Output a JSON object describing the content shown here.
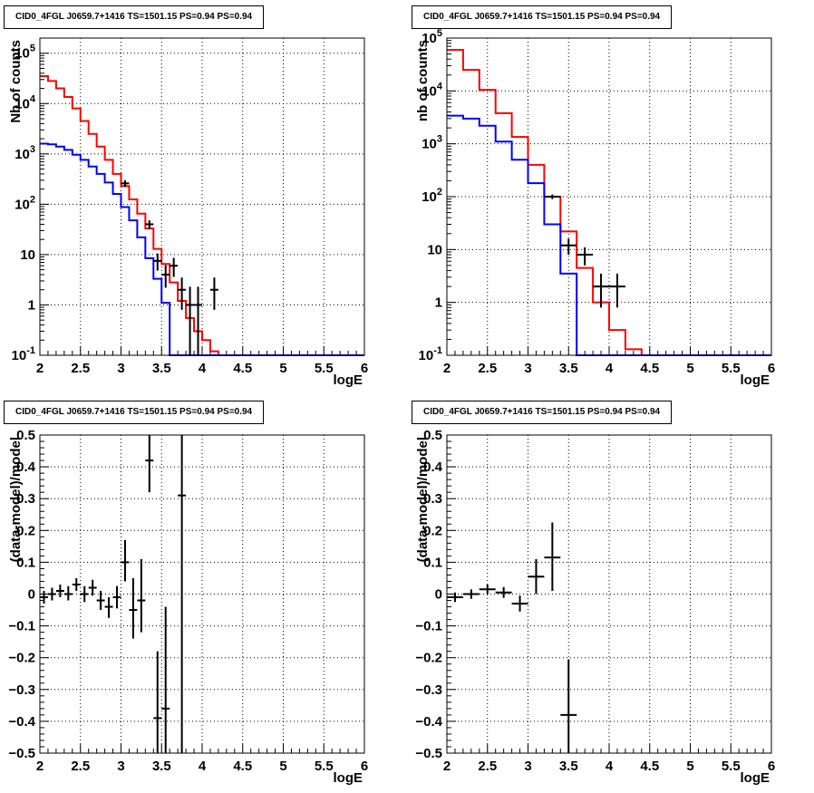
{
  "chart_data": [
    {
      "type": "line",
      "panel": "top-left",
      "title": "CID0_4FGL J0659.7+1416 TS=1501.15 PS=0.94 PS=0.94",
      "xlabel": "logE",
      "ylabel": "Nb of counts",
      "xlim": [
        2,
        6
      ],
      "ylim": [
        0.1,
        200000
      ],
      "yscale": "log",
      "grid": true,
      "x_ticks": [
        "2",
        "2.5",
        "3",
        "3.5",
        "4",
        "4.5",
        "5",
        "5.5",
        "6"
      ],
      "y_ticks": [
        "10^-1",
        "1",
        "10",
        "10^2",
        "10^3",
        "10^4",
        "10^5"
      ],
      "series": [
        {
          "color": "#ff0000",
          "style": "step",
          "x": [
            2.0,
            2.1,
            2.2,
            2.3,
            2.4,
            2.5,
            2.6,
            2.7,
            2.8,
            2.9,
            3.0,
            3.1,
            3.2,
            3.3,
            3.4,
            3.5,
            3.6,
            3.7,
            3.8,
            3.9,
            4.0,
            4.1,
            4.2,
            4.3,
            4.4,
            4.5,
            4.6,
            4.7,
            4.8,
            4.9,
            5.0,
            5.1,
            5.2,
            5.3,
            5.4,
            5.5,
            5.6,
            5.7,
            5.8,
            5.9
          ],
          "values": [
            35000,
            28000,
            20000,
            13500,
            8000,
            4500,
            2500,
            1400,
            760,
            400,
            230,
            125,
            65,
            33,
            13,
            6.5,
            2.8,
            1.2,
            0.55,
            0.3,
            0.2,
            0.12,
            0.1,
            0.1,
            0.1,
            0.1,
            0.1,
            0.1,
            0.1,
            0.1,
            0.1,
            0.1,
            0.1,
            0.1,
            0.1,
            0.1,
            0.1,
            0.1,
            0.1,
            0.1
          ]
        },
        {
          "color": "#0000ff",
          "style": "step",
          "x": [
            2.0,
            2.1,
            2.2,
            2.3,
            2.4,
            2.5,
            2.6,
            2.7,
            2.8,
            2.9,
            3.0,
            3.1,
            3.2,
            3.3,
            3.4,
            3.5,
            3.6,
            3.7,
            3.8,
            3.9,
            4.0,
            4.1,
            4.2,
            4.3,
            4.4,
            4.5,
            4.6,
            4.7,
            4.8,
            4.9,
            5.0,
            5.1,
            5.2,
            5.3,
            5.4,
            5.5,
            5.6,
            5.7,
            5.8,
            5.9
          ],
          "values": [
            1600,
            1550,
            1400,
            1200,
            960,
            760,
            560,
            400,
            270,
            160,
            88,
            48,
            22,
            8.5,
            3.3,
            1.1,
            0.1,
            0.1,
            0.1,
            0.1,
            0.1,
            0.1,
            0.1,
            0.1,
            0.1,
            0.1,
            0.1,
            0.1,
            0.1,
            0.1,
            0.1,
            0.1,
            0.1,
            0.1,
            0.1,
            0.1,
            0.1,
            0.1,
            0.1,
            0.1
          ]
        },
        {
          "color": "#000000",
          "style": "errorbar",
          "x": [
            3.05,
            3.35,
            3.45,
            3.55,
            3.65,
            3.75,
            3.85,
            3.95,
            4.15
          ],
          "values": [
            260,
            40,
            7.5,
            4,
            6,
            2,
            1,
            1,
            2
          ],
          "xerr": 0.05,
          "err_low": [
            220,
            32,
            4.8,
            2.2,
            3.6,
            0.8,
            0.1,
            0.1,
            0.8
          ],
          "err_high": [
            300,
            48,
            10.5,
            6.2,
            8.6,
            3.5,
            2.3,
            2.3,
            3.5
          ]
        }
      ]
    },
    {
      "type": "line",
      "panel": "top-right",
      "title": "CID0_4FGL J0659.7+1416 TS=1501.15 PS=0.94 PS=0.94",
      "xlabel": "logE",
      "ylabel": "nb of counts",
      "xlim": [
        2,
        6
      ],
      "ylim": [
        0.1,
        100000
      ],
      "yscale": "log",
      "grid": true,
      "x_ticks": [
        "2",
        "2.5",
        "3",
        "3.5",
        "4",
        "4.5",
        "5",
        "5.5",
        "6"
      ],
      "y_ticks": [
        "10^-1",
        "1",
        "10",
        "10^2",
        "10^3",
        "10^4",
        "10^5"
      ],
      "series": [
        {
          "color": "#ff0000",
          "style": "step",
          "x": [
            2.0,
            2.2,
            2.4,
            2.6,
            2.8,
            3.0,
            3.2,
            3.4,
            3.6,
            3.8,
            4.0,
            4.2,
            4.4,
            4.6,
            4.8,
            5.0,
            5.2,
            5.4,
            5.6,
            5.8
          ],
          "values": [
            60000,
            25000,
            10500,
            3800,
            1350,
            400,
            100,
            22,
            4.5,
            1,
            0.3,
            0.13,
            0.1,
            0.1,
            0.1,
            0.1,
            0.1,
            0.1,
            0.1,
            0.1
          ],
          "xerr": 0.1
        },
        {
          "color": "#0000ff",
          "style": "step",
          "x": [
            2.0,
            2.2,
            2.4,
            2.6,
            2.8,
            3.0,
            3.2,
            3.4,
            3.6,
            3.8,
            4.0,
            4.2,
            4.4,
            4.6,
            4.8,
            5.0,
            5.2,
            5.4,
            5.6,
            5.8
          ],
          "values": [
            3400,
            3000,
            2200,
            1100,
            500,
            180,
            30,
            3.5,
            0.1,
            0.1,
            0.1,
            0.1,
            0.1,
            0.1,
            0.1,
            0.1,
            0.1,
            0.1,
            0.1,
            0.1
          ]
        },
        {
          "color": "#000000",
          "style": "errorbar",
          "x": [
            3.3,
            3.5,
            3.7,
            3.9,
            4.1
          ],
          "values": [
            100,
            12,
            8,
            2,
            2
          ],
          "xerr": 0.1,
          "err_low": [
            90,
            8,
            5,
            0.8,
            0.8
          ],
          "err_high": [
            110,
            16,
            11,
            3.5,
            3.5
          ]
        }
      ]
    },
    {
      "type": "scatter",
      "panel": "bottom-left",
      "title": "CID0_4FGL J0659.7+1416 TS=1501.15 PS=0.94 PS=0.94",
      "xlabel": "logE",
      "ylabel": "(data-model)/model",
      "xlim": [
        2,
        6
      ],
      "ylim": [
        -0.5,
        0.5
      ],
      "grid": true,
      "x_ticks": [
        "2",
        "2.5",
        "3",
        "3.5",
        "4",
        "4.5",
        "5",
        "5.5",
        "6"
      ],
      "y_ticks": [
        "−0.5",
        "−0.4",
        "−0.3",
        "−0.2",
        "−0.1",
        "0",
        "0.1",
        "0.2",
        "0.3",
        "0.4",
        "0.5"
      ],
      "series": [
        {
          "color": "#000000",
          "style": "errorbar",
          "x": [
            2.05,
            2.15,
            2.25,
            2.35,
            2.45,
            2.55,
            2.65,
            2.75,
            2.85,
            2.95,
            3.05,
            3.15,
            3.25,
            3.35,
            3.45,
            3.55,
            3.75
          ],
          "values": [
            -0.01,
            0.0,
            0.01,
            0.0,
            0.03,
            0.0,
            0.02,
            -0.02,
            -0.04,
            -0.01,
            0.1,
            -0.05,
            -0.02,
            0.42,
            -0.39,
            -0.36,
            0.31
          ],
          "xerr": 0.05,
          "err_low": [
            -0.03,
            -0.02,
            -0.01,
            -0.02,
            0.01,
            -0.025,
            -0.005,
            -0.05,
            -0.075,
            -0.045,
            0.04,
            -0.14,
            -0.12,
            0.32,
            -0.6,
            -0.6,
            -0.6
          ],
          "err_high": [
            0.01,
            0.02,
            0.03,
            0.025,
            0.05,
            0.025,
            0.045,
            0.01,
            -0.01,
            0.025,
            0.17,
            0.05,
            0.11,
            0.5,
            -0.18,
            -0.04,
            0.5
          ]
        }
      ]
    },
    {
      "type": "scatter",
      "panel": "bottom-right",
      "title": "CID0_4FGL J0659.7+1416 TS=1501.15 PS=0.94 PS=0.94",
      "xlabel": "logE",
      "ylabel": "(data-model)/model",
      "xlim": [
        2,
        6
      ],
      "ylim": [
        -0.5,
        0.5
      ],
      "grid": true,
      "x_ticks": [
        "2",
        "2.5",
        "3",
        "3.5",
        "4",
        "4.5",
        "5",
        "5.5",
        "6"
      ],
      "y_ticks": [
        "−0.5",
        "−0.4",
        "−0.3",
        "−0.2",
        "−0.1",
        "0",
        "0.1",
        "0.2",
        "0.3",
        "0.4",
        "0.5"
      ],
      "series": [
        {
          "color": "#000000",
          "style": "errorbar",
          "x": [
            2.1,
            2.3,
            2.5,
            2.7,
            2.9,
            3.1,
            3.3,
            3.5
          ],
          "values": [
            -0.01,
            0.0,
            0.015,
            0.005,
            -0.03,
            0.055,
            0.115,
            -0.38
          ],
          "xerr": 0.1,
          "err_low": [
            -0.025,
            -0.015,
            0.0,
            -0.012,
            -0.055,
            0.0,
            0.01,
            -0.6
          ],
          "err_high": [
            0.005,
            0.015,
            0.03,
            0.022,
            -0.005,
            0.11,
            0.225,
            -0.205
          ]
        }
      ]
    }
  ]
}
